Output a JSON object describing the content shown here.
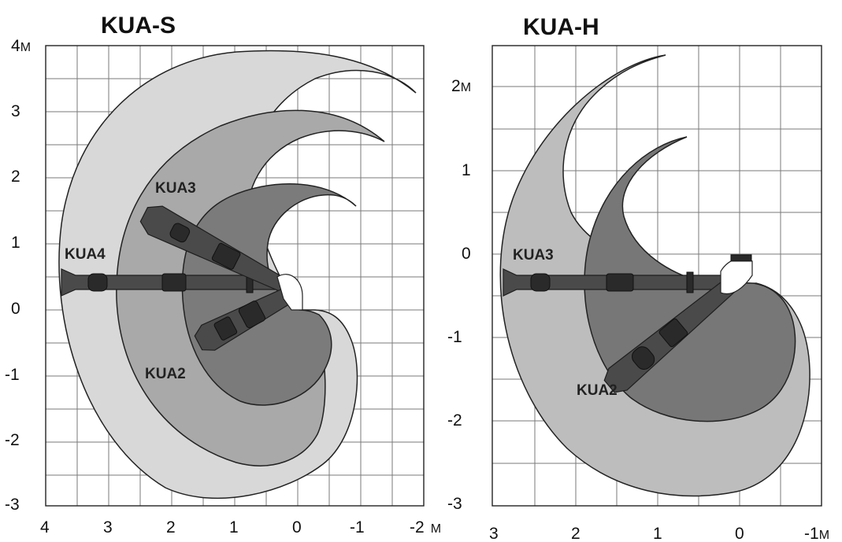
{
  "panels": {
    "left": {
      "title": "KUA-S",
      "y_ticks": [
        {
          "label": "4",
          "unit": "M"
        },
        {
          "label": "3"
        },
        {
          "label": "2"
        },
        {
          "label": "1"
        },
        {
          "label": "0"
        },
        {
          "label": "-1"
        },
        {
          "label": "-2"
        },
        {
          "label": "-3"
        }
      ],
      "x_ticks": [
        {
          "label": "4"
        },
        {
          "label": "3"
        },
        {
          "label": "2"
        },
        {
          "label": "1"
        },
        {
          "label": "0"
        },
        {
          "label": "-1"
        },
        {
          "label": "-2",
          "unit": "M"
        }
      ],
      "callouts": {
        "kua4": "KUA4",
        "kua3": "KUA3",
        "kua2": "KUA2"
      }
    },
    "right": {
      "title": "KUA-H",
      "y_ticks": [
        {
          "label": "2",
          "unit": "M"
        },
        {
          "label": "1"
        },
        {
          "label": "0"
        },
        {
          "label": "-1"
        },
        {
          "label": "-2"
        },
        {
          "label": "-3"
        }
      ],
      "x_ticks": [
        {
          "label": "3"
        },
        {
          "label": "2"
        },
        {
          "label": "1"
        },
        {
          "label": "0"
        },
        {
          "label": "-1",
          "unit": "M"
        }
      ],
      "callouts": {
        "kua3": "KUA3",
        "kua2": "KUA2"
      }
    }
  },
  "colors": {
    "zone_light": "#d8d8d8",
    "zone_mid": "#a9a9a9",
    "zone_dark": "#7b7b7b",
    "zone_h_light": "#bdbdbd",
    "zone_h_dark": "#777777",
    "arm": "#4a4a4a",
    "grid": "#7a7a7a"
  }
}
